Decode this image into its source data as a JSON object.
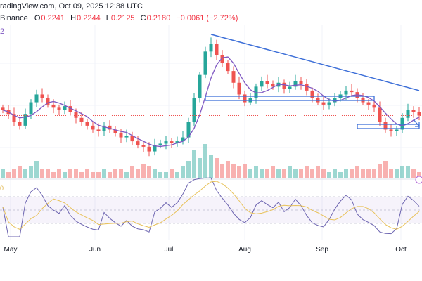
{
  "header": {
    "source_line": "radingView.com, Oct 09, 2025 12:38 UTC",
    "exchange": "Binance",
    "open_label": "O",
    "open": "0.2241",
    "high_label": "H",
    "high": "0.2244",
    "low_label": "L",
    "low": "0.2125",
    "close_label": "C",
    "close": "0.2180",
    "change": "−0.0061 (−2.72%)",
    "indicator_value": "2",
    "rsi_label": "0"
  },
  "colors": {
    "up": "#26a69a",
    "down": "#ef5350",
    "ma": "#7e57c2",
    "trend": "#3d6fd8",
    "rsi": "#6c64b0",
    "rsi_ma": "#e8c25a",
    "last": "#ef5350"
  },
  "chart_data": {
    "type": "candlestick",
    "x_ticks": [
      "May",
      "Jun",
      "Jul",
      "Aug",
      "Sep",
      "Oct"
    ],
    "ylim": [
      0.15,
      0.33
    ],
    "closes": [
      0.225,
      0.22,
      0.21,
      0.205,
      0.22,
      0.235,
      0.245,
      0.24,
      0.232,
      0.228,
      0.225,
      0.23,
      0.222,
      0.215,
      0.21,
      0.205,
      0.2,
      0.198,
      0.205,
      0.2,
      0.195,
      0.19,
      0.192,
      0.185,
      0.18,
      0.178,
      0.172,
      0.18,
      0.182,
      0.185,
      0.183,
      0.185,
      0.19,
      0.21,
      0.24,
      0.27,
      0.3,
      0.31,
      0.295,
      0.285,
      0.275,
      0.26,
      0.245,
      0.235,
      0.24,
      0.255,
      0.262,
      0.258,
      0.255,
      0.26,
      0.252,
      0.255,
      0.262,
      0.258,
      0.25,
      0.24,
      0.235,
      0.232,
      0.235,
      0.24,
      0.245,
      0.25,
      0.248,
      0.24,
      0.235,
      0.232,
      0.228,
      0.21,
      0.2,
      0.198,
      0.2,
      0.215,
      0.225,
      0.222,
      0.218
    ],
    "volumes": [
      3,
      2,
      3,
      4,
      3,
      4,
      6,
      3,
      3,
      2,
      3,
      2,
      3,
      3,
      2,
      3,
      2,
      2,
      3,
      2,
      3,
      3,
      2,
      4,
      3,
      5,
      4,
      3,
      2,
      2,
      3,
      2,
      4,
      6,
      10,
      7,
      12,
      8,
      7,
      5,
      6,
      5,
      4,
      5,
      3,
      4,
      3,
      3,
      4,
      3,
      3,
      4,
      3,
      3,
      4,
      3,
      4,
      3,
      2,
      3,
      2,
      3,
      3,
      4,
      3,
      3,
      3,
      5,
      6,
      3,
      3,
      4,
      4,
      3,
      2
    ],
    "trendlines": [
      {
        "name": "descending-resistance",
        "from": [
          37,
          0.322
        ],
        "to": [
          74,
          0.25
        ]
      },
      {
        "name": "support-zone-upper",
        "from": [
          36,
          0.24
        ],
        "to": [
          66,
          0.24
        ],
        "band": 0.004
      },
      {
        "name": "support-zone-lower",
        "from": [
          63,
          0.204
        ],
        "to": [
          74,
          0.204
        ],
        "band": 0.003
      }
    ]
  }
}
